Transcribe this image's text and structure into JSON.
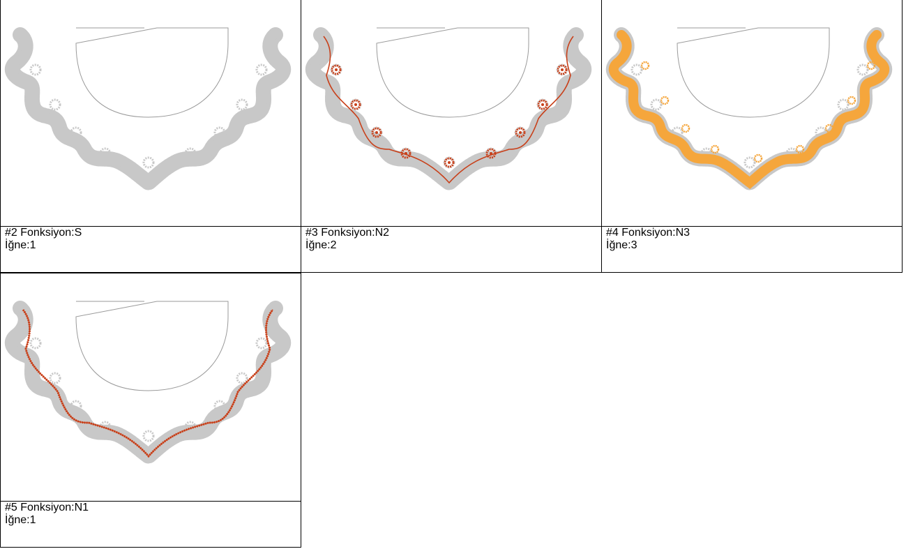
{
  "panels": [
    {
      "id": 2,
      "title": "#2 Fonksiyon:S",
      "needle": "İğne:1",
      "highlight": "none",
      "highlight_color": ""
    },
    {
      "id": 3,
      "title": "#3 Fonksiyon:N2",
      "needle": "İğne:2",
      "highlight": "flowers-outline",
      "highlight_color": "#c8401a"
    },
    {
      "id": 4,
      "title": "#4 Fonksiyon:N3",
      "needle": "İğne:3",
      "highlight": "full-lace",
      "highlight_color": "#f5a63c"
    },
    {
      "id": 5,
      "title": "#5 Fonksiyon:N1",
      "needle": "İğne:1",
      "highlight": "inner-edge",
      "highlight_color": "#c8401a"
    }
  ],
  "colors": {
    "base_lace": "#c8c8c8",
    "neckline": "#999999",
    "border": "#000000"
  }
}
